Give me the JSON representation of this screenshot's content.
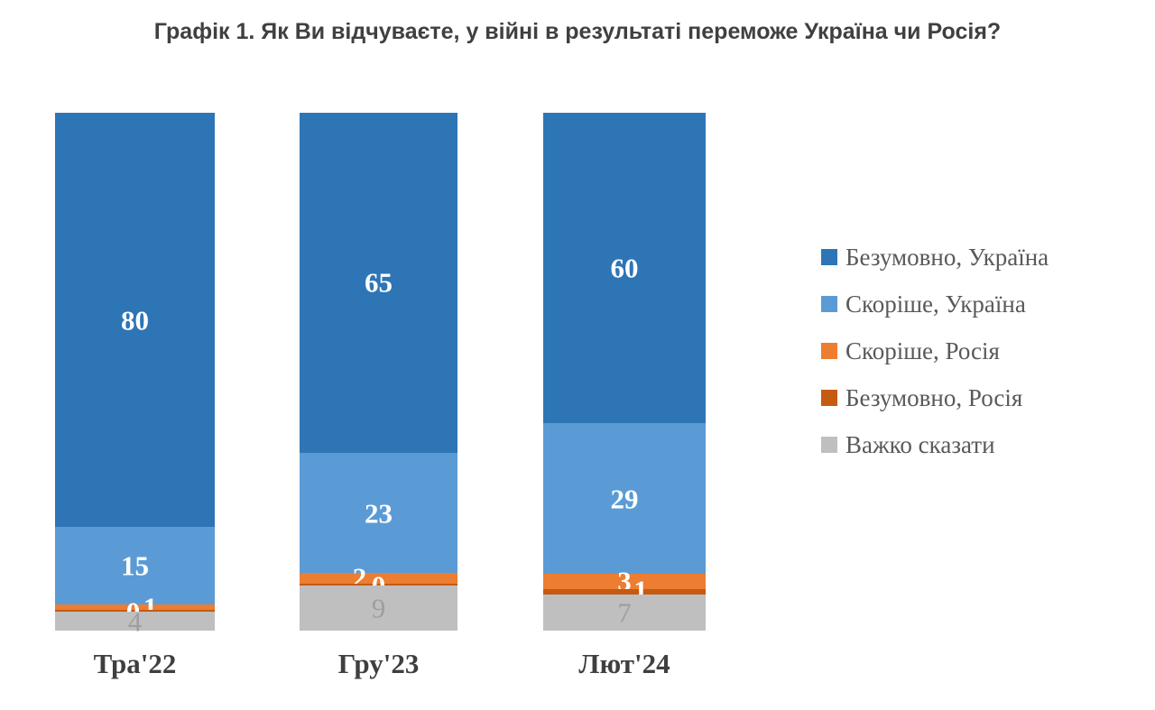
{
  "chart_data": {
    "type": "bar",
    "stacked": true,
    "stack_mode": "percent",
    "title": "Графік 1. Як Ви відчуваєте, у війні в результаті переможе Україна чи Росія?",
    "categories": [
      "Тра'22",
      "Гру'23",
      "Лют'24"
    ],
    "series": [
      {
        "name": "Безумовно, Україна",
        "color": "#2E75B6",
        "values": [
          80,
          65,
          60
        ]
      },
      {
        "name": "Скоріше, Україна",
        "color": "#5B9BD5",
        "values": [
          15,
          23,
          29
        ]
      },
      {
        "name": "Скоріше, Росія",
        "color": "#ED7D31",
        "values": [
          1,
          2,
          3
        ]
      },
      {
        "name": "Безумовно, Росія",
        "color": "#C55A11",
        "values": [
          0,
          0,
          1
        ]
      },
      {
        "name": "Важко сказати",
        "color": "#BFBFBF",
        "values": [
          4,
          9,
          7
        ]
      }
    ],
    "ylim": [
      0,
      100
    ],
    "grid": false,
    "axes_visible": false,
    "legend_position": "right",
    "colors": {
      "data_label_default": "#FFFFFF",
      "data_label_on_gray": "#9E9E9E",
      "title_text": "#404040",
      "category_text": "#3F3F3F",
      "legend_text": "#595959"
    }
  }
}
